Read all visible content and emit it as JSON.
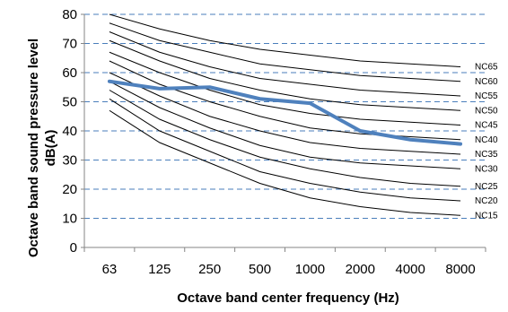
{
  "chart_data": {
    "type": "line",
    "title": "",
    "xlabel": "Octave band center frequency (Hz)",
    "ylabel_line1": "Octave band sound pressure level",
    "ylabel_line2": "dB(A)",
    "categories": [
      "63",
      "125",
      "250",
      "500",
      "1000",
      "2000",
      "4000",
      "8000"
    ],
    "ylim": [
      0,
      80
    ],
    "yticks": [
      "0",
      "10",
      "20",
      "30",
      "40",
      "50",
      "60",
      "70",
      "80"
    ],
    "grid": "horizontal dashed",
    "reference_curves": [
      {
        "name": "NC15",
        "values": [
          47,
          36,
          29,
          22,
          17,
          14,
          12,
          11
        ]
      },
      {
        "name": "NC20",
        "values": [
          51,
          40,
          33,
          26,
          22,
          19,
          17,
          16
        ]
      },
      {
        "name": "NC25",
        "values": [
          54,
          44,
          37,
          31,
          27,
          24,
          22,
          21
        ]
      },
      {
        "name": "NC30",
        "values": [
          57,
          48,
          41,
          35,
          31,
          29,
          28,
          27
        ]
      },
      {
        "name": "NC35",
        "values": [
          60,
          52,
          45,
          40,
          36,
          34,
          33,
          32
        ]
      },
      {
        "name": "NC40",
        "values": [
          64,
          56,
          50,
          45,
          41,
          39,
          38,
          37
        ]
      },
      {
        "name": "NC45",
        "values": [
          67,
          60,
          54,
          49,
          46,
          44,
          43,
          42
        ]
      },
      {
        "name": "NC50",
        "values": [
          71,
          64,
          58,
          54,
          51,
          49,
          48,
          47
        ]
      },
      {
        "name": "NC55",
        "values": [
          74,
          67,
          62,
          58,
          56,
          54,
          53,
          52
        ]
      },
      {
        "name": "NC60",
        "values": [
          77,
          71,
          67,
          63,
          61,
          59,
          58,
          57
        ]
      },
      {
        "name": "NC65",
        "values": [
          80,
          75,
          71,
          68,
          66,
          64,
          63,
          62
        ]
      }
    ],
    "series": [
      {
        "values": [
          57,
          54.5,
          55,
          51,
          49.5,
          40,
          37,
          35.5
        ]
      }
    ],
    "colors": {
      "reference_curve": "#000000",
      "series": "#4f81bd",
      "gridline": "#4a7ebb",
      "axis": "#868686"
    }
  }
}
